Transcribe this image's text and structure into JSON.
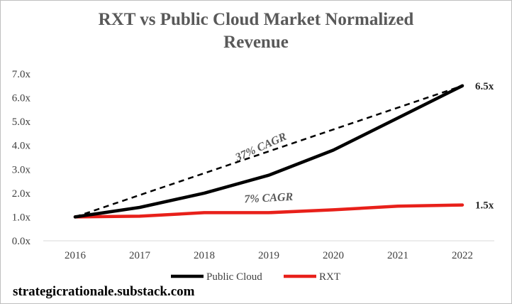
{
  "chart_data": {
    "type": "line",
    "title_line1": "RXT vs Public Cloud Market Normalized",
    "title_line2": "Revenue",
    "categories": [
      "2016",
      "2017",
      "2018",
      "2019",
      "2020",
      "2021",
      "2022"
    ],
    "y_tick_labels": [
      "0.0x",
      "1.0x",
      "2.0x",
      "3.0x",
      "4.0x",
      "5.0x",
      "6.0x",
      "7.0x"
    ],
    "ylim": [
      0,
      7
    ],
    "grid": false,
    "legend_position": "bottom",
    "series": [
      {
        "name": "Public Cloud",
        "color": "#000000",
        "values": [
          1.0,
          1.4,
          2.0,
          2.75,
          3.8,
          5.15,
          6.5
        ],
        "end_label": "6.5x"
      },
      {
        "name": "RXT",
        "color": "#e8201a",
        "values": [
          1.0,
          1.03,
          1.18,
          1.18,
          1.3,
          1.45,
          1.5
        ],
        "end_label": "1.5x"
      }
    ],
    "trendline": {
      "style": "dashed",
      "color": "#000000",
      "from": [
        2016,
        1.0
      ],
      "to": [
        2022,
        6.5
      ]
    },
    "annotations": [
      {
        "text": "37% CAGR",
        "x": 2018.9,
        "y": 3.8
      },
      {
        "text": "7% CAGR",
        "x": 2019.0,
        "y": 1.65
      }
    ]
  },
  "watermark": "strategicrationale.substack.com"
}
